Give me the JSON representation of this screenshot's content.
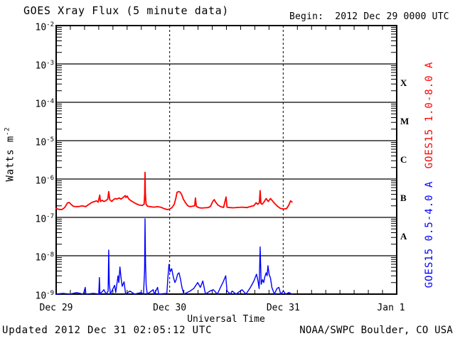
{
  "header": {
    "title": "GOES Xray Flux (5 minute data)",
    "begin": "Begin:  2012 Dec 29 0000 UTC"
  },
  "footer": {
    "updated": "Updated 2012 Dec 31 02:05:12 UTC",
    "source": "NOAA/SWPC Boulder, CO USA"
  },
  "chart_data": {
    "type": "line",
    "title": "GOES Xray Flux (5 minute data)",
    "xlabel": "Universal Time",
    "ylabel": {
      "base": "Watts m",
      "sup": "-2"
    },
    "x_tick_labels": [
      "Dec 29",
      "Dec 30",
      "Dec 31",
      "Jan 1"
    ],
    "x_range_days": [
      0,
      3
    ],
    "x_minor_tick_hours": 3,
    "y_scale": "log",
    "y_tick_exponents": [
      -2,
      -3,
      -4,
      -5,
      -6,
      -7,
      -8,
      -9
    ],
    "flare_class_labels": [
      "X",
      "M",
      "C",
      "B",
      "A"
    ],
    "grid": {
      "h_line_exponents": [
        -3,
        -4,
        -5,
        -6,
        -7,
        -8
      ],
      "v_dashed_days": [
        1,
        2
      ]
    },
    "colors": {
      "long": "#ff0000",
      "short": "#0000ff",
      "axis": "#000000",
      "background": "#ffffff"
    },
    "series": [
      {
        "name": "GOES15 1.0-8.0 A",
        "color": "#ff0000",
        "points": [
          [
            0.0,
            1.7e-07
          ],
          [
            0.025,
            1.62e-07
          ],
          [
            0.05,
            1.6e-07
          ],
          [
            0.075,
            1.8e-07
          ],
          [
            0.1,
            2.4e-07
          ],
          [
            0.115,
            2.45e-07
          ],
          [
            0.13,
            2.2e-07
          ],
          [
            0.15,
            1.95e-07
          ],
          [
            0.175,
            1.9e-07
          ],
          [
            0.2,
            1.92e-07
          ],
          [
            0.23,
            2e-07
          ],
          [
            0.26,
            1.9e-07
          ],
          [
            0.29,
            2.2e-07
          ],
          [
            0.32,
            2.5e-07
          ],
          [
            0.34,
            2.6e-07
          ],
          [
            0.355,
            2.7e-07
          ],
          [
            0.37,
            2.5e-07
          ],
          [
            0.384,
            3.8e-07
          ],
          [
            0.39,
            2.6e-07
          ],
          [
            0.405,
            2.8e-07
          ],
          [
            0.42,
            2.6e-07
          ],
          [
            0.435,
            2.7e-07
          ],
          [
            0.455,
            3e-07
          ],
          [
            0.463,
            4.7e-07
          ],
          [
            0.472,
            2.9e-07
          ],
          [
            0.49,
            2.6e-07
          ],
          [
            0.505,
            2.9e-07
          ],
          [
            0.52,
            3.1e-07
          ],
          [
            0.535,
            3e-07
          ],
          [
            0.555,
            3.2e-07
          ],
          [
            0.57,
            3e-07
          ],
          [
            0.59,
            3.3e-07
          ],
          [
            0.608,
            3.7e-07
          ],
          [
            0.615,
            3.3e-07
          ],
          [
            0.625,
            3.6e-07
          ],
          [
            0.64,
            3e-07
          ],
          [
            0.66,
            2.7e-07
          ],
          [
            0.68,
            2.5e-07
          ],
          [
            0.7,
            2.3e-07
          ],
          [
            0.73,
            2.1e-07
          ],
          [
            0.76,
            2.05e-07
          ],
          [
            0.775,
            2.2e-07
          ],
          [
            0.78,
            4e-07
          ],
          [
            0.783,
            1.5e-06
          ],
          [
            0.786,
            4e-07
          ],
          [
            0.792,
            2.2e-07
          ],
          [
            0.805,
            1.95e-07
          ],
          [
            0.83,
            1.9e-07
          ],
          [
            0.86,
            1.85e-07
          ],
          [
            0.89,
            1.9e-07
          ],
          [
            0.92,
            1.85e-07
          ],
          [
            0.95,
            1.7e-07
          ],
          [
            0.98,
            1.6e-07
          ],
          [
            1.0,
            1.65e-07
          ],
          [
            1.02,
            1.8e-07
          ],
          [
            1.04,
            2.2e-07
          ],
          [
            1.055,
            3.2e-07
          ],
          [
            1.065,
            4.5e-07
          ],
          [
            1.08,
            4.7e-07
          ],
          [
            1.09,
            4.6e-07
          ],
          [
            1.105,
            4e-07
          ],
          [
            1.12,
            3e-07
          ],
          [
            1.14,
            2.4e-07
          ],
          [
            1.16,
            2e-07
          ],
          [
            1.18,
            1.9e-07
          ],
          [
            1.2,
            1.95e-07
          ],
          [
            1.22,
            2e-07
          ],
          [
            1.227,
            3.2e-07
          ],
          [
            1.235,
            1.95e-07
          ],
          [
            1.255,
            1.8e-07
          ],
          [
            1.28,
            1.75e-07
          ],
          [
            1.31,
            1.78e-07
          ],
          [
            1.34,
            1.8e-07
          ],
          [
            1.36,
            1.95e-07
          ],
          [
            1.38,
            2.6e-07
          ],
          [
            1.392,
            2.9e-07
          ],
          [
            1.405,
            2.5e-07
          ],
          [
            1.425,
            2.1e-07
          ],
          [
            1.45,
            1.9e-07
          ],
          [
            1.475,
            1.82e-07
          ],
          [
            1.497,
            3.4e-07
          ],
          [
            1.505,
            1.85e-07
          ],
          [
            1.53,
            1.8e-07
          ],
          [
            1.56,
            1.78e-07
          ],
          [
            1.6,
            1.82e-07
          ],
          [
            1.64,
            1.85e-07
          ],
          [
            1.68,
            1.8e-07
          ],
          [
            1.72,
            1.95e-07
          ],
          [
            1.74,
            2e-07
          ],
          [
            1.762,
            2.4e-07
          ],
          [
            1.775,
            2.2e-07
          ],
          [
            1.79,
            2.4e-07
          ],
          [
            1.797,
            5e-07
          ],
          [
            1.804,
            2.3e-07
          ],
          [
            1.815,
            2.2e-07
          ],
          [
            1.83,
            2.5e-07
          ],
          [
            1.85,
            3.1e-07
          ],
          [
            1.868,
            2.6e-07
          ],
          [
            1.888,
            3.1e-07
          ],
          [
            1.905,
            2.7e-07
          ],
          [
            1.925,
            2.3e-07
          ],
          [
            1.95,
            1.95e-07
          ],
          [
            1.975,
            1.72e-07
          ],
          [
            2.005,
            1.65e-07
          ],
          [
            2.03,
            1.7e-07
          ],
          [
            2.05,
            2.1e-07
          ],
          [
            2.065,
            2.7e-07
          ],
          [
            2.078,
            2.5e-07
          ]
        ]
      },
      {
        "name": "GOES15 0.5-4.0 A",
        "color": "#0000ff",
        "points": [
          [
            0.0,
            1e-09
          ],
          [
            0.06,
            1.05e-09
          ],
          [
            0.12,
            1e-09
          ],
          [
            0.18,
            1.1e-09
          ],
          [
            0.24,
            1e-09
          ],
          [
            0.256,
            1.5e-09
          ],
          [
            0.262,
            1e-09
          ],
          [
            0.33,
            1.05e-09
          ],
          [
            0.376,
            1e-09
          ],
          [
            0.381,
            2.7e-09
          ],
          [
            0.386,
            1e-09
          ],
          [
            0.42,
            1.3e-09
          ],
          [
            0.44,
            1e-09
          ],
          [
            0.458,
            1.2e-09
          ],
          [
            0.463,
            1.4e-08
          ],
          [
            0.468,
            1.9e-09
          ],
          [
            0.478,
            1e-09
          ],
          [
            0.515,
            1.7e-09
          ],
          [
            0.525,
            1.1e-09
          ],
          [
            0.545,
            3e-09
          ],
          [
            0.552,
            2e-09
          ],
          [
            0.562,
            5.1e-09
          ],
          [
            0.572,
            2.6e-09
          ],
          [
            0.582,
            1.6e-09
          ],
          [
            0.598,
            2.1e-09
          ],
          [
            0.612,
            1e-09
          ],
          [
            0.65,
            1.2e-09
          ],
          [
            0.69,
            1e-09
          ],
          [
            0.745,
            1.1e-09
          ],
          [
            0.77,
            1e-09
          ],
          [
            0.779,
            4.3e-09
          ],
          [
            0.783,
            9.2e-08
          ],
          [
            0.787,
            6.5e-09
          ],
          [
            0.793,
            1.7e-09
          ],
          [
            0.802,
            1e-09
          ],
          [
            0.855,
            1.3e-09
          ],
          [
            0.865,
            1e-09
          ],
          [
            0.893,
            1.5e-09
          ],
          [
            0.903,
            1e-09
          ],
          [
            0.975,
            1.05e-09
          ],
          [
            0.984,
            2.6e-09
          ],
          [
            0.994,
            6e-09
          ],
          [
            1.004,
            3.8e-09
          ],
          [
            1.018,
            4.6e-09
          ],
          [
            1.032,
            2.8e-09
          ],
          [
            1.046,
            2e-09
          ],
          [
            1.058,
            2.4e-09
          ],
          [
            1.07,
            3.3e-09
          ],
          [
            1.082,
            3.6e-09
          ],
          [
            1.095,
            2.5e-09
          ],
          [
            1.108,
            1.5e-09
          ],
          [
            1.125,
            1e-09
          ],
          [
            1.18,
            1.2e-09
          ],
          [
            1.212,
            1.4e-09
          ],
          [
            1.247,
            2e-09
          ],
          [
            1.27,
            1.5e-09
          ],
          [
            1.292,
            2.2e-09
          ],
          [
            1.315,
            1e-09
          ],
          [
            1.355,
            1.2e-09
          ],
          [
            1.385,
            1.3e-09
          ],
          [
            1.42,
            1e-09
          ],
          [
            1.448,
            1.5e-09
          ],
          [
            1.472,
            2.1e-09
          ],
          [
            1.494,
            3e-09
          ],
          [
            1.505,
            1.2e-09
          ],
          [
            1.535,
            1e-09
          ],
          [
            1.55,
            1.2e-09
          ],
          [
            1.585,
            1e-09
          ],
          [
            1.638,
            1.3e-09
          ],
          [
            1.672,
            1e-09
          ],
          [
            1.712,
            1.5e-09
          ],
          [
            1.742,
            2.2e-09
          ],
          [
            1.765,
            3.3e-09
          ],
          [
            1.778,
            2.2e-09
          ],
          [
            1.788,
            1.4e-09
          ],
          [
            1.797,
            1.7e-08
          ],
          [
            1.806,
            1.8e-09
          ],
          [
            1.818,
            2.4e-09
          ],
          [
            1.828,
            2e-09
          ],
          [
            1.838,
            2.8e-09
          ],
          [
            1.85,
            3.6e-09
          ],
          [
            1.858,
            3e-09
          ],
          [
            1.866,
            5.5e-09
          ],
          [
            1.876,
            3.3e-09
          ],
          [
            1.888,
            2.6e-09
          ],
          [
            1.9,
            1.5e-09
          ],
          [
            1.922,
            1e-09
          ],
          [
            1.945,
            1.4e-09
          ],
          [
            1.962,
            1.5e-09
          ],
          [
            1.978,
            1e-09
          ],
          [
            2.002,
            1.2e-09
          ],
          [
            2.022,
            1e-09
          ],
          [
            2.05,
            1.1e-09
          ],
          [
            2.078,
            1e-09
          ]
        ]
      }
    ]
  }
}
